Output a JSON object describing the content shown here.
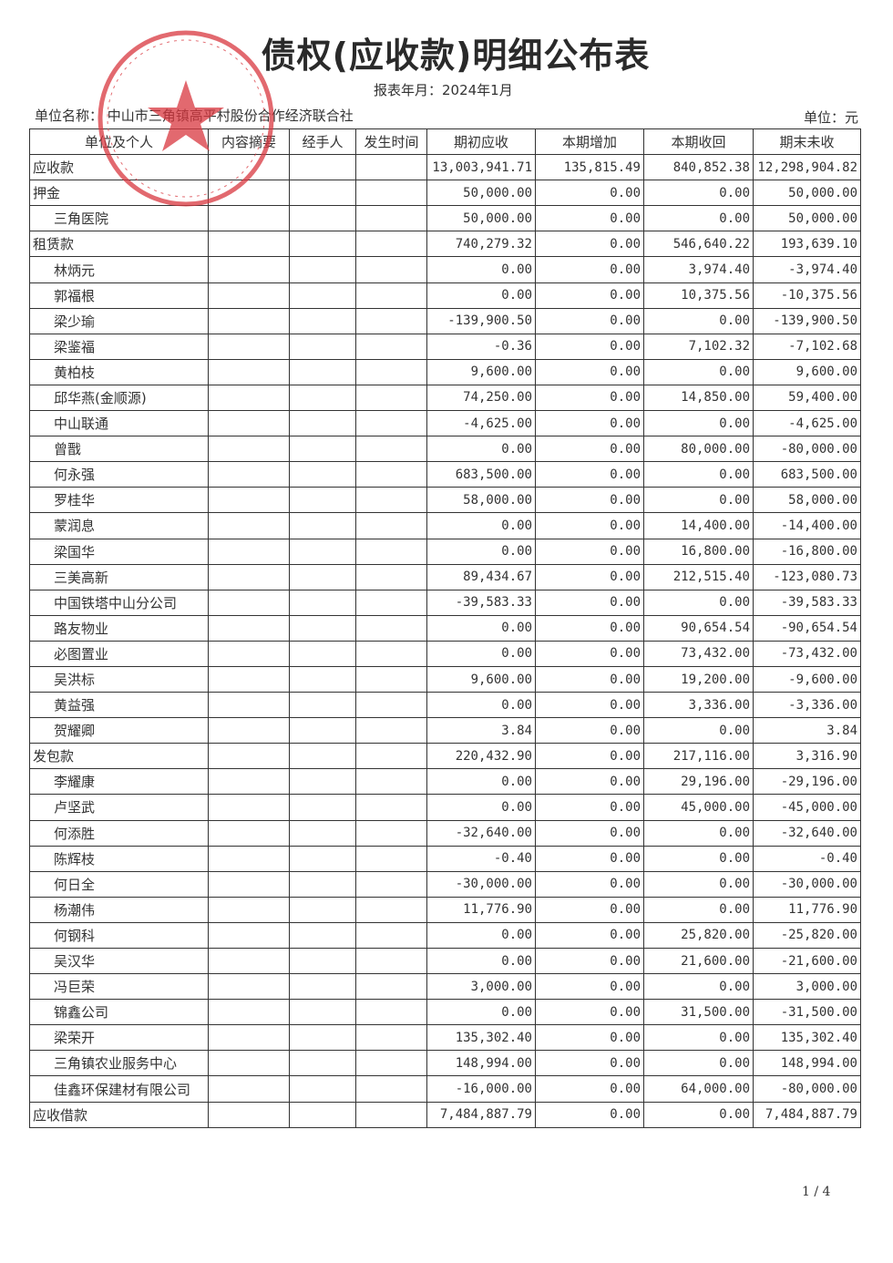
{
  "title": "债权(应收款)明细公布表",
  "period": "报表年月：2024年1月",
  "unit_name": "单位名称：  中山市三角镇高平村股份合作经济联合社",
  "unit": "单位：元",
  "stamp_text": "中山市三角镇高平村股份合作经济联合社",
  "stamp_color": "#d9383f",
  "columns": [
    "单位及个人",
    "内容摘要",
    "经手人",
    "发生时间",
    "期初应收",
    "本期增加",
    "本期收回",
    "期末未收"
  ],
  "rows": [
    {
      "name": "应收款",
      "level": 0,
      "v": [
        "13,003,941.71",
        "135,815.49",
        "840,852.38",
        "12,298,904.82"
      ]
    },
    {
      "name": "押金",
      "level": 0,
      "v": [
        "50,000.00",
        "0.00",
        "0.00",
        "50,000.00"
      ]
    },
    {
      "name": "三角医院",
      "level": 1,
      "v": [
        "50,000.00",
        "0.00",
        "0.00",
        "50,000.00"
      ]
    },
    {
      "name": "租赁款",
      "level": 0,
      "v": [
        "740,279.32",
        "0.00",
        "546,640.22",
        "193,639.10"
      ]
    },
    {
      "name": "林炳元",
      "level": 1,
      "v": [
        "0.00",
        "0.00",
        "3,974.40",
        "-3,974.40"
      ]
    },
    {
      "name": "郭福根",
      "level": 1,
      "v": [
        "0.00",
        "0.00",
        "10,375.56",
        "-10,375.56"
      ]
    },
    {
      "name": "梁少瑜",
      "level": 1,
      "v": [
        "-139,900.50",
        "0.00",
        "0.00",
        "-139,900.50"
      ]
    },
    {
      "name": "梁鉴福",
      "level": 1,
      "v": [
        "-0.36",
        "0.00",
        "7,102.32",
        "-7,102.68"
      ]
    },
    {
      "name": "黄柏枝",
      "level": 1,
      "v": [
        "9,600.00",
        "0.00",
        "0.00",
        "9,600.00"
      ]
    },
    {
      "name": "邱华燕(金顺源)",
      "level": 1,
      "v": [
        "74,250.00",
        "0.00",
        "14,850.00",
        "59,400.00"
      ]
    },
    {
      "name": "中山联通",
      "level": 1,
      "v": [
        "-4,625.00",
        "0.00",
        "0.00",
        "-4,625.00"
      ]
    },
    {
      "name": "曾戬",
      "level": 1,
      "v": [
        "0.00",
        "0.00",
        "80,000.00",
        "-80,000.00"
      ]
    },
    {
      "name": "何永强",
      "level": 1,
      "v": [
        "683,500.00",
        "0.00",
        "0.00",
        "683,500.00"
      ]
    },
    {
      "name": "罗桂华",
      "level": 1,
      "v": [
        "58,000.00",
        "0.00",
        "0.00",
        "58,000.00"
      ]
    },
    {
      "name": "蒙润息",
      "level": 1,
      "v": [
        "0.00",
        "0.00",
        "14,400.00",
        "-14,400.00"
      ]
    },
    {
      "name": "梁国华",
      "level": 1,
      "v": [
        "0.00",
        "0.00",
        "16,800.00",
        "-16,800.00"
      ]
    },
    {
      "name": "三美高新",
      "level": 1,
      "v": [
        "89,434.67",
        "0.00",
        "212,515.40",
        "-123,080.73"
      ]
    },
    {
      "name": "中国铁塔中山分公司",
      "level": 1,
      "v": [
        "-39,583.33",
        "0.00",
        "0.00",
        "-39,583.33"
      ]
    },
    {
      "name": "路友物业",
      "level": 1,
      "v": [
        "0.00",
        "0.00",
        "90,654.54",
        "-90,654.54"
      ]
    },
    {
      "name": "必图置业",
      "level": 1,
      "v": [
        "0.00",
        "0.00",
        "73,432.00",
        "-73,432.00"
      ]
    },
    {
      "name": "吴洪标",
      "level": 1,
      "v": [
        "9,600.00",
        "0.00",
        "19,200.00",
        "-9,600.00"
      ]
    },
    {
      "name": "黄益强",
      "level": 1,
      "v": [
        "0.00",
        "0.00",
        "3,336.00",
        "-3,336.00"
      ]
    },
    {
      "name": "贺耀卿",
      "level": 1,
      "v": [
        "3.84",
        "0.00",
        "0.00",
        "3.84"
      ]
    },
    {
      "name": "发包款",
      "level": 0,
      "v": [
        "220,432.90",
        "0.00",
        "217,116.00",
        "3,316.90"
      ]
    },
    {
      "name": "李耀康",
      "level": 1,
      "v": [
        "0.00",
        "0.00",
        "29,196.00",
        "-29,196.00"
      ]
    },
    {
      "name": "卢坚武",
      "level": 1,
      "v": [
        "0.00",
        "0.00",
        "45,000.00",
        "-45,000.00"
      ]
    },
    {
      "name": "何添胜",
      "level": 1,
      "v": [
        "-32,640.00",
        "0.00",
        "0.00",
        "-32,640.00"
      ]
    },
    {
      "name": "陈辉枝",
      "level": 1,
      "v": [
        "-0.40",
        "0.00",
        "0.00",
        "-0.40"
      ]
    },
    {
      "name": "何日全",
      "level": 1,
      "v": [
        "-30,000.00",
        "0.00",
        "0.00",
        "-30,000.00"
      ]
    },
    {
      "name": "杨潮伟",
      "level": 1,
      "v": [
        "11,776.90",
        "0.00",
        "0.00",
        "11,776.90"
      ]
    },
    {
      "name": "何钢科",
      "level": 1,
      "v": [
        "0.00",
        "0.00",
        "25,820.00",
        "-25,820.00"
      ]
    },
    {
      "name": "吴汉华",
      "level": 1,
      "v": [
        "0.00",
        "0.00",
        "21,600.00",
        "-21,600.00"
      ]
    },
    {
      "name": "冯巨荣",
      "level": 1,
      "v": [
        "3,000.00",
        "0.00",
        "0.00",
        "3,000.00"
      ]
    },
    {
      "name": "锦鑫公司",
      "level": 1,
      "v": [
        "0.00",
        "0.00",
        "31,500.00",
        "-31,500.00"
      ]
    },
    {
      "name": "梁荣开",
      "level": 1,
      "v": [
        "135,302.40",
        "0.00",
        "0.00",
        "135,302.40"
      ]
    },
    {
      "name": "三角镇农业服务中心",
      "level": 1,
      "v": [
        "148,994.00",
        "0.00",
        "0.00",
        "148,994.00"
      ]
    },
    {
      "name": "佳鑫环保建材有限公司",
      "level": 1,
      "v": [
        "-16,000.00",
        "0.00",
        "64,000.00",
        "-80,000.00"
      ]
    },
    {
      "name": "应收借款",
      "level": 0,
      "v": [
        "7,484,887.79",
        "0.00",
        "0.00",
        "7,484,887.79"
      ]
    }
  ],
  "page_number": "1 / 4"
}
